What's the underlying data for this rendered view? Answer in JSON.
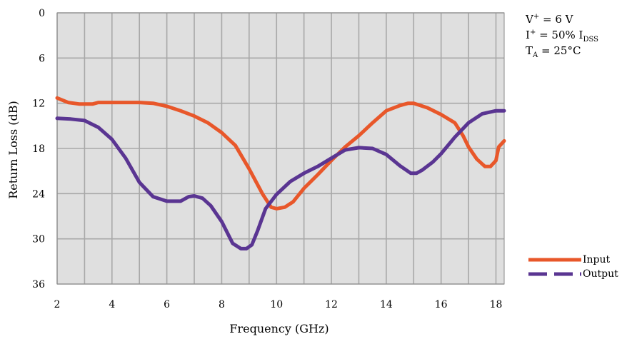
{
  "conditions": {
    "line1_prefix": "V",
    "line1_sup": "+",
    "line1_suffix": " = 6 V",
    "line2_prefix": "I",
    "line2_sup": "+",
    "line2_mid": " = 50% I",
    "line2_sub": "DSS",
    "line3_prefix": "T",
    "line3_sub": "A",
    "line3_suffix": " = 25°C"
  },
  "chart_data": {
    "type": "line",
    "title": "",
    "xlabel": "Frequency (GHz)",
    "ylabel": "Return Loss (dB)",
    "xlim": [
      2,
      18.3
    ],
    "ylim": [
      0,
      36
    ],
    "y_inverted": true,
    "x_ticks": [
      "2",
      "4",
      "6",
      "8",
      "10",
      "12",
      "14",
      "16",
      "18"
    ],
    "y_ticks": [
      "0",
      "6",
      "12",
      "18",
      "24",
      "30",
      "36"
    ],
    "grid": true,
    "plot_background": "#dfdfdf",
    "grid_color": "#a8a8a8",
    "legend_position": "bottom-right",
    "series": [
      {
        "name": "Input",
        "color": "#e8572a",
        "style": "solid",
        "x": [
          2.0,
          2.4,
          2.8,
          3.3,
          3.5,
          4.0,
          5.0,
          5.5,
          6.0,
          6.5,
          7.0,
          7.5,
          8.0,
          8.5,
          9.0,
          9.5,
          9.8,
          10.0,
          10.3,
          10.6,
          11.0,
          11.5,
          12.0,
          12.5,
          13.0,
          13.5,
          14.0,
          14.5,
          14.8,
          15.0,
          15.5,
          16.0,
          16.5,
          16.8,
          17.0,
          17.3,
          17.6,
          17.8,
          18.0,
          18.1,
          18.3
        ],
        "y": [
          11.3,
          11.9,
          12.1,
          12.1,
          11.9,
          11.9,
          11.9,
          12.0,
          12.4,
          13.0,
          13.7,
          14.6,
          15.9,
          17.6,
          20.7,
          24.1,
          25.8,
          26.0,
          25.8,
          25.1,
          23.3,
          21.5,
          19.6,
          17.8,
          16.3,
          14.6,
          13.0,
          12.3,
          12.0,
          12.0,
          12.6,
          13.5,
          14.6,
          16.3,
          17.8,
          19.4,
          20.4,
          20.4,
          19.6,
          17.8,
          17.0
        ]
      },
      {
        "name": "Output",
        "color": "#5a3592",
        "style": "dashed",
        "x": [
          2.0,
          2.5,
          3.0,
          3.5,
          4.0,
          4.5,
          5.0,
          5.5,
          6.0,
          6.5,
          6.8,
          7.0,
          7.3,
          7.6,
          8.0,
          8.4,
          8.7,
          8.9,
          9.1,
          9.3,
          9.6,
          10.0,
          10.5,
          11.0,
          11.5,
          12.0,
          12.5,
          13.0,
          13.5,
          14.0,
          14.5,
          14.9,
          15.1,
          15.3,
          15.7,
          16.0,
          16.5,
          17.0,
          17.5,
          18.0,
          18.3
        ],
        "y": [
          14.0,
          14.1,
          14.3,
          15.2,
          16.8,
          19.3,
          22.5,
          24.4,
          25.0,
          25.0,
          24.4,
          24.3,
          24.6,
          25.6,
          27.7,
          30.6,
          31.3,
          31.3,
          30.8,
          29.0,
          26.0,
          24.1,
          22.4,
          21.3,
          20.4,
          19.3,
          18.2,
          17.9,
          18.0,
          18.8,
          20.3,
          21.3,
          21.3,
          20.9,
          19.8,
          18.7,
          16.5,
          14.6,
          13.4,
          13.0,
          13.0
        ]
      }
    ]
  }
}
